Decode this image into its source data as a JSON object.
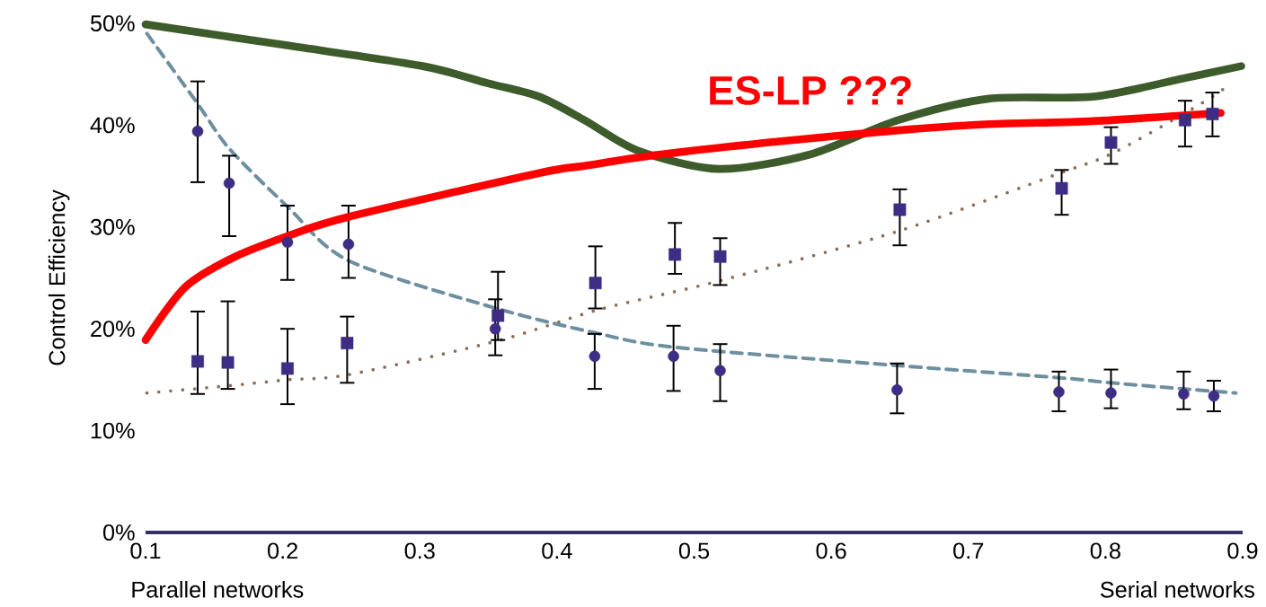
{
  "chart_data": {
    "type": "line",
    "ylabel": "Control Efficiency",
    "annotations": [
      "Parallel networks",
      "Serial networks"
    ],
    "xlim": [
      0.1,
      0.9
    ],
    "xticks": [
      0.1,
      0.2,
      0.3,
      0.4,
      0.5,
      0.6,
      0.7,
      0.8,
      0.9
    ],
    "ylim": [
      0,
      50
    ],
    "yticks": [
      {
        "value": 0,
        "label": "0%"
      },
      {
        "value": 10,
        "label": "10%"
      },
      {
        "value": 20,
        "label": "20%"
      },
      {
        "value": 30,
        "label": "30%"
      },
      {
        "value": 40,
        "label": "40%"
      },
      {
        "value": 50,
        "label": "50%"
      }
    ],
    "grid": false,
    "legend": false,
    "series": [
      {
        "line_style": "dashed",
        "marker": "none",
        "color": "#6e8fa0",
        "x": [
          0.101,
          0.138,
          0.161,
          0.2035,
          0.248,
          0.356,
          0.428,
          0.485,
          0.648,
          0.766,
          0.804,
          0.857,
          0.895
        ],
        "values": [
          49.0,
          42.1,
          37.7,
          32.0,
          26.7,
          22.0,
          19.6,
          18.2,
          16.4,
          15.2,
          14.7,
          14.1,
          13.7
        ]
      },
      {
        "line_style": "dotted",
        "marker": "none",
        "color": "#8c6d55",
        "x": [
          0.101,
          0.16,
          0.2035,
          0.248,
          0.356,
          0.431,
          0.518,
          0.649,
          0.767,
          0.806,
          0.867,
          0.892
        ],
        "values": [
          13.7,
          14.4,
          15.0,
          15.5,
          18.8,
          21.9,
          24.7,
          29.6,
          35.3,
          37.3,
          41.9,
          44.1
        ]
      },
      {
        "type": "scatter",
        "marker": "circle",
        "color": "#3f2d85",
        "x": [
          0.138,
          0.161,
          0.2035,
          0.248,
          0.355,
          0.4275,
          0.485,
          0.519,
          0.648,
          0.766,
          0.804,
          0.857,
          0.879
        ],
        "values": [
          39.4,
          34.3,
          28.5,
          28.3,
          20.0,
          17.3,
          17.3,
          15.9,
          14.0,
          13.8,
          13.7,
          13.6,
          13.4
        ],
        "errors": [
          [
            34.4,
            44.3
          ],
          [
            29.1,
            37.0
          ],
          [
            24.8,
            32.1
          ],
          [
            25.0,
            32.1
          ],
          [
            17.4,
            22.9
          ],
          [
            14.1,
            19.5
          ],
          [
            13.9,
            20.3
          ],
          [
            12.9,
            18.5
          ],
          [
            11.7,
            16.6
          ],
          [
            11.9,
            15.8
          ],
          [
            12.2,
            16.0
          ],
          [
            12.1,
            15.8
          ],
          [
            11.9,
            14.9
          ]
        ]
      },
      {
        "type": "scatter",
        "marker": "square",
        "color": "#3f2d85",
        "x": [
          0.138,
          0.16,
          0.2035,
          0.247,
          0.357,
          0.428,
          0.486,
          0.519,
          0.65,
          0.768,
          0.804,
          0.858,
          0.878
        ],
        "values": [
          16.8,
          16.7,
          16.1,
          18.6,
          21.3,
          24.5,
          27.3,
          27.1,
          31.7,
          33.8,
          38.3,
          40.5,
          41.1
        ],
        "errors": [
          [
            13.6,
            21.7
          ],
          [
            14.1,
            22.7
          ],
          [
            12.6,
            20.0
          ],
          [
            14.7,
            21.2
          ],
          [
            18.9,
            25.6
          ],
          [
            22.0,
            28.1
          ],
          [
            25.4,
            30.4
          ],
          [
            24.3,
            28.9
          ],
          [
            28.2,
            33.7
          ],
          [
            31.2,
            35.6
          ],
          [
            36.2,
            39.8
          ],
          [
            37.9,
            42.4
          ],
          [
            38.9,
            43.2
          ]
        ]
      },
      {
        "line_style": "solid",
        "marker": "none",
        "color": "#3d5b2b",
        "x": [
          0.1,
          0.2,
          0.302,
          0.35,
          0.387,
          0.42,
          0.459,
          0.518,
          0.584,
          0.649,
          0.715,
          0.791,
          0.857,
          0.899
        ],
        "values": [
          49.9,
          47.9,
          45.8,
          44.1,
          42.8,
          40.5,
          37.5,
          35.7,
          37.1,
          40.5,
          42.6,
          42.8,
          44.6,
          45.8
        ]
      },
      {
        "line_style": "solid",
        "marker": "none",
        "name": "ES-LP ???",
        "color": "#ff0000",
        "x": [
          0.1,
          0.129,
          0.164,
          0.2035,
          0.248,
          0.387,
          0.42,
          0.474,
          0.562,
          0.649,
          0.715,
          0.791,
          0.884
        ],
        "values": [
          18.9,
          24.1,
          27.0,
          29.1,
          31.0,
          35.3,
          36.0,
          37.1,
          38.4,
          39.5,
          40.1,
          40.4,
          41.2
        ]
      }
    ]
  }
}
